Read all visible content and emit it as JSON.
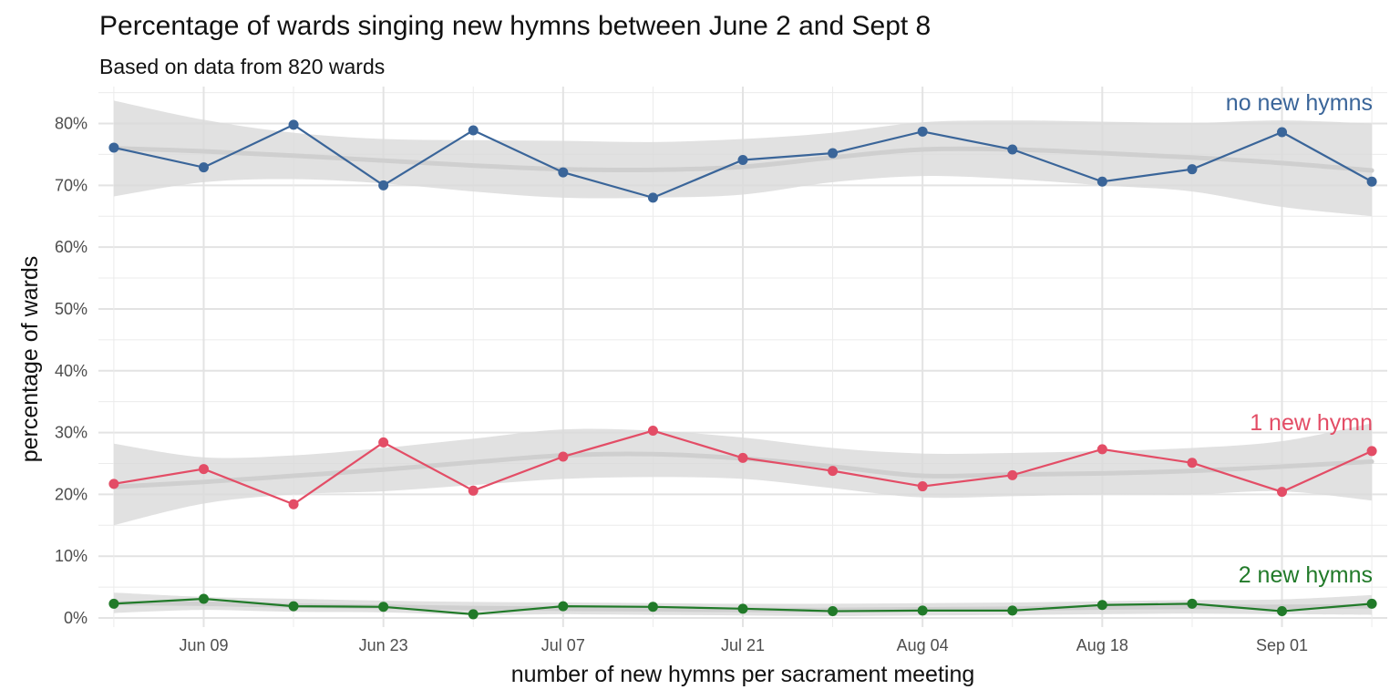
{
  "chart_data": {
    "type": "line",
    "title": "Percentage of wards singing new hymns between June 2 and Sept 8",
    "subtitle": "Based on data from 820 wards",
    "xlabel": "number of new hymns per sacrament meeting",
    "ylabel": "percentage of wards",
    "x": [
      "2024-06-02",
      "2024-06-09",
      "2024-06-16",
      "2024-06-23",
      "2024-06-30",
      "2024-07-07",
      "2024-07-14",
      "2024-07-21",
      "2024-07-28",
      "2024-08-04",
      "2024-08-11",
      "2024-08-18",
      "2024-08-25",
      "2024-09-01",
      "2024-09-08"
    ],
    "x_tick_labels": [
      "Jun 09",
      "Jun 23",
      "Jul 07",
      "Jul 21",
      "Aug 04",
      "Aug 18",
      "Sep 01"
    ],
    "x_tick_dates": [
      "2024-06-09",
      "2024-06-23",
      "2024-07-07",
      "2024-07-21",
      "2024-08-04",
      "2024-08-18",
      "2024-09-01"
    ],
    "ylim": [
      0,
      85
    ],
    "y_ticks": [
      0,
      10,
      20,
      30,
      40,
      50,
      60,
      70,
      80
    ],
    "y_tick_labels": [
      "0%",
      "10%",
      "20%",
      "30%",
      "40%",
      "50%",
      "60%",
      "70%",
      "80%"
    ],
    "grid": true,
    "smoother": true,
    "series": [
      {
        "name": "no new hymns",
        "color": "#3a6599",
        "values": [
          76.1,
          72.9,
          79.8,
          70.0,
          78.9,
          72.1,
          68.0,
          74.1,
          75.2,
          78.7,
          75.8,
          70.6,
          72.6,
          78.6,
          70.6
        ],
        "smooth": [
          76.0,
          75.5,
          74.8,
          74.0,
          73.2,
          72.6,
          72.5,
          73.0,
          74.5,
          75.8,
          75.8,
          75.2,
          74.5,
          73.6,
          72.4
        ],
        "band_low": [
          68.2,
          70.5,
          71.0,
          70.3,
          69.0,
          68.0,
          68.0,
          68.5,
          70.5,
          71.5,
          71.0,
          70.0,
          69.0,
          66.5,
          65.0
        ],
        "band_high": [
          83.7,
          80.6,
          78.5,
          77.5,
          77.3,
          77.2,
          77.0,
          77.5,
          78.5,
          80.2,
          80.5,
          80.3,
          80.1,
          80.5,
          80.0
        ]
      },
      {
        "name": "1 new hymn",
        "color": "#e34d66",
        "values": [
          21.7,
          24.1,
          18.4,
          28.4,
          20.6,
          26.1,
          30.3,
          25.9,
          23.8,
          21.3,
          23.1,
          27.3,
          25.1,
          20.4,
          27.0
        ],
        "smooth": [
          21.2,
          22.0,
          23.0,
          24.0,
          25.2,
          26.3,
          26.5,
          25.8,
          24.5,
          23.0,
          23.2,
          23.4,
          23.8,
          24.5,
          25.3
        ],
        "band_low": [
          15.0,
          18.5,
          20.0,
          20.5,
          21.5,
          22.5,
          22.8,
          22.5,
          21.0,
          19.5,
          19.7,
          20.0,
          20.0,
          20.5,
          19.0
        ],
        "band_high": [
          28.2,
          26.0,
          26.3,
          27.5,
          29.0,
          30.5,
          30.3,
          29.2,
          27.5,
          26.6,
          26.7,
          27.0,
          27.5,
          28.6,
          31.5
        ]
      },
      {
        "name": "2 new hymns",
        "color": "#217a29",
        "values": [
          2.3,
          3.1,
          1.9,
          1.8,
          0.6,
          1.9,
          1.8,
          1.5,
          1.1,
          1.2,
          1.2,
          2.1,
          2.3,
          1.1,
          2.3
        ],
        "smooth": [
          2.4,
          2.3,
          2.0,
          1.8,
          1.6,
          1.5,
          1.4,
          1.3,
          1.3,
          1.4,
          1.5,
          1.7,
          1.8,
          1.8,
          1.9
        ],
        "band_low": [
          0.8,
          1.3,
          1.0,
          0.9,
          0.5,
          0.6,
          0.5,
          0.4,
          0.3,
          0.4,
          0.5,
          0.6,
          0.7,
          0.6,
          0.5
        ],
        "band_high": [
          4.1,
          3.4,
          3.1,
          2.8,
          2.6,
          2.5,
          2.4,
          2.3,
          2.3,
          2.4,
          2.5,
          2.7,
          2.9,
          3.0,
          3.7
        ]
      }
    ]
  }
}
